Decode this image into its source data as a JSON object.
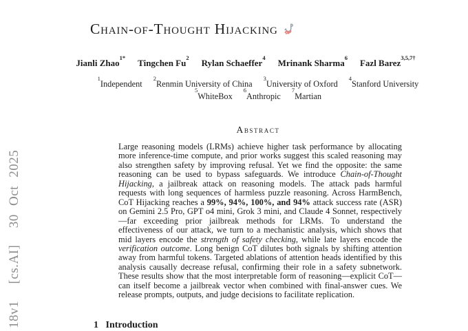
{
  "colors": {
    "text": "#1d1d1d",
    "stamp_grey": "#8d8d8d",
    "hook_grey": "#979da6",
    "worm_pink": "#e8837d"
  },
  "arxiv_stamp": "18v1  [cs.AI]  30 Oct 2025",
  "title": {
    "text": "Chain-of-Thought Hijacking",
    "icon": "fishhook-worm-emoji"
  },
  "authors": [
    {
      "name": "Jianli Zhao",
      "sup": "1*"
    },
    {
      "name": "Tingchen Fu",
      "sup": "2"
    },
    {
      "name": "Rylan Schaeffer",
      "sup": "4"
    },
    {
      "name": "Mrinank Sharma",
      "sup": "6"
    },
    {
      "name": "Fazl Barez",
      "sup": "3,5,7†"
    }
  ],
  "affiliations": {
    "line1": [
      {
        "sup": "1",
        "name": "Independent"
      },
      {
        "sup": "2",
        "name": "Renmin University of China"
      },
      {
        "sup": "3",
        "name": "University of Oxford"
      },
      {
        "sup": "4",
        "name": "Stanford University"
      }
    ],
    "line2": [
      {
        "sup": "5",
        "name": "WhiteBox"
      },
      {
        "sup": "6",
        "name": "Anthropic"
      },
      {
        "sup": "7",
        "name": "Martian"
      }
    ]
  },
  "abstract": {
    "heading": "Abstract",
    "segments": [
      {
        "t": "Large reasoning models (LRMs) achieve higher task performance by allocating more inference-time compute, and prior works suggest this scaled reasoning may also strengthen safety by improving refusal. Yet we find the opposite: the same reasoning can be used to bypass safeguards. We introduce "
      },
      {
        "t": "Chain-of-Thought Hijacking",
        "i": true
      },
      {
        "t": ", a jailbreak attack on reasoning models. The attack pads harmful requests with long sequences of harmless puzzle reasoning. Across HarmBench, CoT Hijacking reaches a "
      },
      {
        "t": "99%, 94%, 100%, and 94%",
        "b": true
      },
      {
        "t": " attack success rate (ASR) on Gemini 2.5 Pro, GPT o4 mini, Grok 3 mini, and Claude 4 Sonnet, respectively—far exceeding prior jailbreak methods for LRMs. To understand the effectiveness of our attack, we turn to a mechanistic analysis, which shows that mid layers encode the "
      },
      {
        "t": "strength of safety checking",
        "i": true
      },
      {
        "t": ", while late layers encode the "
      },
      {
        "t": "verification outcome",
        "i": true
      },
      {
        "t": ". Long benign CoT dilutes both signals by shifting attention away from harmful tokens. Targeted ablations of attention heads identified by this analysis causally decrease refusal, confirming their role in a safety subnetwork. These results show that the most interpretable form of reasoning—explicit CoT—can itself become a jailbreak vector when combined with final-answer cues. We release prompts, outputs, and judge decisions to facilitate replication."
      }
    ]
  },
  "section_partial": "1   Introduction"
}
